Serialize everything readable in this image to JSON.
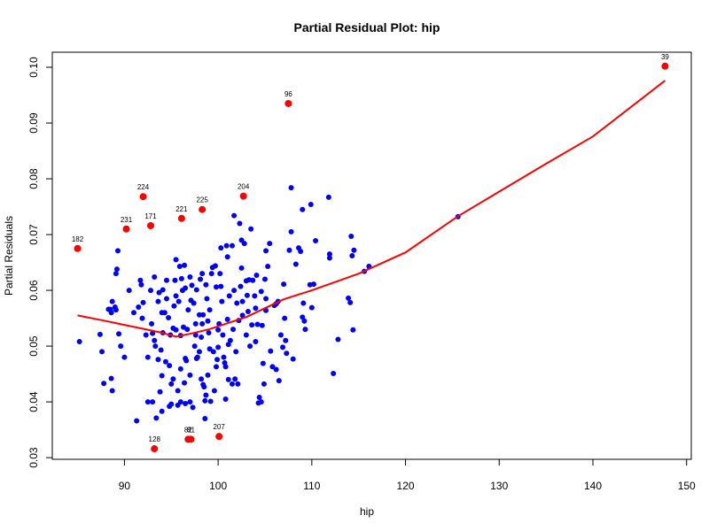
{
  "chart_data": {
    "type": "scatter",
    "title": "Partial Residual Plot: hip",
    "xlabel": "hip",
    "ylabel": "Partial Residuals",
    "xlim": [
      82.3,
      150.5
    ],
    "ylim": [
      0.0297,
      0.1027
    ],
    "xticks": [
      90,
      100,
      110,
      120,
      130,
      140,
      150
    ],
    "yticks": [
      0.03,
      0.04,
      0.05,
      0.06,
      0.07,
      0.08,
      0.09,
      0.1
    ],
    "xtick_labels": [
      "90",
      "100",
      "110",
      "120",
      "130",
      "140",
      "150"
    ],
    "ytick_labels": [
      "0.03",
      "0.04",
      "0.05",
      "0.06",
      "0.07",
      "0.08",
      "0.09",
      "0.10"
    ],
    "colors": {
      "points": "#0000ff",
      "highlight": "#ff0000",
      "smooth": "#ff0000"
    },
    "points": [
      [
        85.2,
        0.0508
      ],
      [
        87.4,
        0.0521
      ],
      [
        87.6,
        0.049
      ],
      [
        87.8,
        0.0433
      ],
      [
        88.3,
        0.0566
      ],
      [
        88.5,
        0.0566
      ],
      [
        88.6,
        0.056
      ],
      [
        88.6,
        0.0442
      ],
      [
        88.7,
        0.058
      ],
      [
        88.7,
        0.042
      ],
      [
        89.0,
        0.057
      ],
      [
        89.1,
        0.0565
      ],
      [
        89.1,
        0.063
      ],
      [
        89.2,
        0.0638
      ],
      [
        89.3,
        0.0671
      ],
      [
        89.4,
        0.0522
      ],
      [
        89.6,
        0.05
      ],
      [
        90.0,
        0.048
      ],
      [
        90.5,
        0.06
      ],
      [
        91.0,
        0.056
      ],
      [
        91.3,
        0.0366
      ],
      [
        91.5,
        0.057
      ],
      [
        91.7,
        0.0618
      ],
      [
        91.8,
        0.061
      ],
      [
        91.9,
        0.055
      ],
      [
        92.0,
        0.0578
      ],
      [
        92.3,
        0.052
      ],
      [
        92.5,
        0.048
      ],
      [
        92.5,
        0.04
      ],
      [
        92.8,
        0.06
      ],
      [
        92.9,
        0.054
      ],
      [
        93.0,
        0.04
      ],
      [
        93.0,
        0.0523
      ],
      [
        93.2,
        0.0624
      ],
      [
        93.2,
        0.051
      ],
      [
        93.3,
        0.05
      ],
      [
        93.4,
        0.0371
      ],
      [
        93.6,
        0.058
      ],
      [
        93.6,
        0.0476
      ],
      [
        93.7,
        0.0596
      ],
      [
        93.8,
        0.0418
      ],
      [
        93.9,
        0.0493
      ],
      [
        94.0,
        0.0383
      ],
      [
        94.0,
        0.0447
      ],
      [
        94.0,
        0.056
      ],
      [
        94.1,
        0.0524
      ],
      [
        94.1,
        0.0601
      ],
      [
        94.3,
        0.056
      ],
      [
        94.4,
        0.0472
      ],
      [
        94.5,
        0.0618
      ],
      [
        94.5,
        0.0585
      ],
      [
        94.7,
        0.0551
      ],
      [
        94.8,
        0.0392
      ],
      [
        94.8,
        0.0465
      ],
      [
        94.9,
        0.052
      ],
      [
        95.0,
        0.0396
      ],
      [
        95.0,
        0.0432
      ],
      [
        95.2,
        0.0441
      ],
      [
        95.2,
        0.0532
      ],
      [
        95.3,
        0.0572
      ],
      [
        95.4,
        0.0618
      ],
      [
        95.5,
        0.059
      ],
      [
        95.5,
        0.0529
      ],
      [
        95.5,
        0.0655
      ],
      [
        95.7,
        0.042
      ],
      [
        95.7,
        0.0394
      ],
      [
        95.8,
        0.058
      ],
      [
        95.9,
        0.0643
      ],
      [
        96.0,
        0.04
      ],
      [
        96.0,
        0.0459
      ],
      [
        96.0,
        0.0519
      ],
      [
        96.1,
        0.0621
      ],
      [
        96.2,
        0.06
      ],
      [
        96.3,
        0.0534
      ],
      [
        96.4,
        0.0645
      ],
      [
        96.4,
        0.0434
      ],
      [
        96.5,
        0.0478
      ],
      [
        96.5,
        0.0397
      ],
      [
        96.5,
        0.0604
      ],
      [
        96.6,
        0.0474
      ],
      [
        96.7,
        0.053
      ],
      [
        96.8,
        0.0565
      ],
      [
        97.0,
        0.04
      ],
      [
        97.0,
        0.0448
      ],
      [
        97.0,
        0.0624
      ],
      [
        97.1,
        0.0582
      ],
      [
        97.2,
        0.0609
      ],
      [
        97.3,
        0.039
      ],
      [
        97.4,
        0.0577
      ],
      [
        97.5,
        0.05
      ],
      [
        97.6,
        0.054
      ],
      [
        97.6,
        0.052
      ],
      [
        97.7,
        0.0478
      ],
      [
        97.7,
        0.0601
      ],
      [
        97.8,
        0.048
      ],
      [
        98.0,
        0.049
      ],
      [
        98.0,
        0.0556
      ],
      [
        98.1,
        0.062
      ],
      [
        98.2,
        0.0516
      ],
      [
        98.2,
        0.0441
      ],
      [
        98.3,
        0.063
      ],
      [
        98.3,
        0.054
      ],
      [
        98.4,
        0.0556
      ],
      [
        98.4,
        0.0431
      ],
      [
        98.5,
        0.0427
      ],
      [
        98.6,
        0.037
      ],
      [
        98.6,
        0.0402
      ],
      [
        98.7,
        0.0412
      ],
      [
        98.7,
        0.061
      ],
      [
        98.8,
        0.0585
      ],
      [
        98.9,
        0.0545
      ],
      [
        98.9,
        0.0448
      ],
      [
        99.0,
        0.0524
      ],
      [
        99.1,
        0.0565
      ],
      [
        99.1,
        0.0495
      ],
      [
        99.2,
        0.0401
      ],
      [
        99.3,
        0.063
      ],
      [
        99.4,
        0.0641
      ],
      [
        99.5,
        0.049
      ],
      [
        99.6,
        0.042
      ],
      [
        99.7,
        0.0644
      ],
      [
        99.8,
        0.0606
      ],
      [
        99.8,
        0.0463
      ],
      [
        99.9,
        0.0476
      ],
      [
        100.0,
        0.0529
      ],
      [
        100.0,
        0.0498
      ],
      [
        100.1,
        0.054
      ],
      [
        100.2,
        0.063
      ],
      [
        100.3,
        0.0607
      ],
      [
        100.3,
        0.0676
      ],
      [
        100.4,
        0.058
      ],
      [
        100.5,
        0.052
      ],
      [
        100.6,
        0.048
      ],
      [
        100.7,
        0.047
      ],
      [
        100.8,
        0.0463
      ],
      [
        100.8,
        0.0405
      ],
      [
        100.9,
        0.068
      ],
      [
        101.0,
        0.0548
      ],
      [
        101.0,
        0.066
      ],
      [
        101.1,
        0.0503
      ],
      [
        101.1,
        0.044
      ],
      [
        101.2,
        0.059
      ],
      [
        101.3,
        0.051
      ],
      [
        101.5,
        0.068
      ],
      [
        101.5,
        0.0432
      ],
      [
        101.6,
        0.053
      ],
      [
        101.7,
        0.0734
      ],
      [
        101.7,
        0.06
      ],
      [
        101.8,
        0.0441
      ],
      [
        101.9,
        0.049
      ],
      [
        102.0,
        0.0577
      ],
      [
        102.1,
        0.0432
      ],
      [
        102.2,
        0.0546
      ],
      [
        102.3,
        0.072
      ],
      [
        102.4,
        0.0607
      ],
      [
        102.5,
        0.069
      ],
      [
        102.5,
        0.064
      ],
      [
        102.6,
        0.058
      ],
      [
        102.6,
        0.0555
      ],
      [
        102.8,
        0.0684
      ],
      [
        103.0,
        0.052
      ],
      [
        103.0,
        0.0617
      ],
      [
        103.1,
        0.0591
      ],
      [
        103.2,
        0.0562
      ],
      [
        103.3,
        0.0619
      ],
      [
        103.4,
        0.05
      ],
      [
        103.5,
        0.071
      ],
      [
        103.6,
        0.0538
      ],
      [
        103.7,
        0.0618
      ],
      [
        103.9,
        0.059
      ],
      [
        104.0,
        0.0508
      ],
      [
        104.0,
        0.0568
      ],
      [
        104.1,
        0.0627
      ],
      [
        104.2,
        0.0539
      ],
      [
        104.3,
        0.0398
      ],
      [
        104.4,
        0.0408
      ],
      [
        104.6,
        0.0598
      ],
      [
        104.6,
        0.04
      ],
      [
        104.7,
        0.0537
      ],
      [
        104.8,
        0.0469
      ],
      [
        104.9,
        0.0432
      ],
      [
        105.0,
        0.062
      ],
      [
        105.1,
        0.0671
      ],
      [
        105.1,
        0.0585
      ],
      [
        105.1,
        0.0564
      ],
      [
        105.3,
        0.0643
      ],
      [
        105.5,
        0.0684
      ],
      [
        105.6,
        0.0491
      ],
      [
        105.8,
        0.0463
      ],
      [
        106.0,
        0.0573
      ],
      [
        106.2,
        0.0576
      ],
      [
        106.2,
        0.0458
      ],
      [
        106.4,
        0.058
      ],
      [
        106.5,
        0.0438
      ],
      [
        106.7,
        0.052
      ],
      [
        106.9,
        0.0498
      ],
      [
        107.0,
        0.0611
      ],
      [
        107.1,
        0.055
      ],
      [
        107.2,
        0.051
      ],
      [
        107.3,
        0.0487
      ],
      [
        107.6,
        0.0672
      ],
      [
        107.8,
        0.0705
      ],
      [
        107.8,
        0.0784
      ],
      [
        108.0,
        0.0477
      ],
      [
        108.3,
        0.0647
      ],
      [
        108.6,
        0.0676
      ],
      [
        108.8,
        0.067
      ],
      [
        109.0,
        0.0745
      ],
      [
        109.0,
        0.0552
      ],
      [
        109.1,
        0.0577
      ],
      [
        109.2,
        0.0545
      ],
      [
        109.3,
        0.053
      ],
      [
        109.8,
        0.061
      ],
      [
        110.0,
        0.0569
      ],
      [
        110.2,
        0.0611
      ],
      [
        110.4,
        0.0689
      ],
      [
        111.8,
        0.0767
      ],
      [
        111.9,
        0.0658
      ],
      [
        111.9,
        0.0665
      ],
      [
        112.3,
        0.0451
      ],
      [
        112.8,
        0.0512
      ],
      [
        113.9,
        0.0586
      ],
      [
        114.1,
        0.0578
      ],
      [
        114.2,
        0.0697
      ],
      [
        114.3,
        0.0662
      ],
      [
        114.4,
        0.0529
      ],
      [
        114.5,
        0.0672
      ],
      [
        115.6,
        0.0634
      ],
      [
        116.1,
        0.0643
      ],
      [
        125.6,
        0.0732
      ],
      [
        109.9,
        0.0754
      ]
    ],
    "labeled_points": [
      {
        "label": "39",
        "x": 147.7,
        "y": 0.1002
      },
      {
        "label": "96",
        "x": 107.5,
        "y": 0.0935
      },
      {
        "label": "204",
        "x": 102.7,
        "y": 0.0769
      },
      {
        "label": "224",
        "x": 92.0,
        "y": 0.0768
      },
      {
        "label": "225",
        "x": 98.3,
        "y": 0.0745
      },
      {
        "label": "221",
        "x": 96.1,
        "y": 0.0729
      },
      {
        "label": "171",
        "x": 92.8,
        "y": 0.0716
      },
      {
        "label": "231",
        "x": 90.2,
        "y": 0.071
      },
      {
        "label": "182",
        "x": 85.0,
        "y": 0.0675
      },
      {
        "label": "207",
        "x": 100.1,
        "y": 0.0338
      },
      {
        "label": "82",
        "x": 96.8,
        "y": 0.0333
      },
      {
        "label": "81",
        "x": 97.1,
        "y": 0.0333
      },
      {
        "label": "128",
        "x": 93.2,
        "y": 0.0316
      }
    ],
    "smooth_line": {
      "x": [
        85,
        88,
        90,
        92,
        94,
        95.5,
        97,
        99,
        101,
        103,
        105,
        107,
        110,
        115,
        120,
        125.6,
        130,
        135,
        140,
        147.7
      ],
      "y": [
        0.0555,
        0.0545,
        0.0538,
        0.0531,
        0.0524,
        0.0517,
        0.0522,
        0.053,
        0.0541,
        0.0552,
        0.0568,
        0.0584,
        0.06,
        0.063,
        0.0668,
        0.0733,
        0.0777,
        0.0827,
        0.0876,
        0.0976
      ]
    }
  }
}
